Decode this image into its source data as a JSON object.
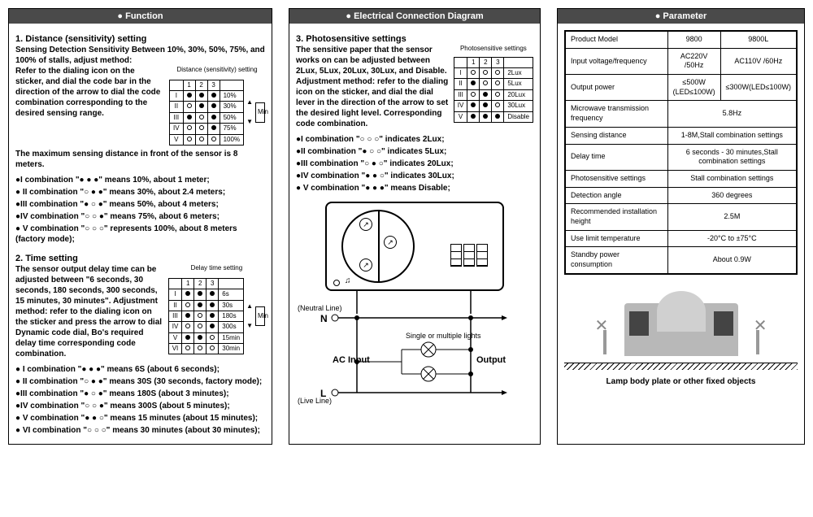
{
  "panel1": {
    "header": "● Function",
    "s1_title": "1. Distance (sensitivity) setting",
    "s1_intro": "Sensing Detection Sensitivity Between 10%, 30%, 50%, 75%, and 100% of stalls, adjust method:",
    "s1_text": "Refer to the dialing icon on the sticker, and dial the code bar in the direction of the arrow to dial the code combination corresponding to the desired sensing range.",
    "s1_tail": "The maximum sensing distance in front of the sensor is 8 meters.",
    "dist_caption": "Distance (sensitivity) setting",
    "dist_rows": [
      {
        "n": "I",
        "d": "●●●",
        "v": "10%"
      },
      {
        "n": "II",
        "d": "○●●",
        "v": "30%"
      },
      {
        "n": "III",
        "d": "●○●",
        "v": "50%"
      },
      {
        "n": "IV",
        "d": "○○●",
        "v": "75%"
      },
      {
        "n": "V",
        "d": "○○○",
        "v": "100%"
      }
    ],
    "s1_bullets": [
      "●I combination \"● ● ●\" means 10%, about 1 meter;",
      "● II combination \"○ ● ●\" means 30%, about 2.4 meters;",
      "●III combination \"● ○ ●\" means 50%, about 4 meters;",
      "●IV combination \"○ ○ ●\" means 75%, about 6 meters;",
      "● V combination \"○ ○ ○\" represents 100%, about 8 meters (factory mode);"
    ],
    "s2_title": "2. Time setting",
    "s2_text": "The sensor output delay time can be adjusted between \"6 seconds, 30 seconds, 180 seconds, 300 seconds, 15 minutes, 30 minutes\". Adjustment method: refer to the dialing icon on the sticker and press the arrow to dial Dynamic code dial, Bo's required delay time corresponding code combination.",
    "delay_caption": "Delay time setting",
    "delay_rows": [
      {
        "n": "I",
        "d": "●●●",
        "v": "6s"
      },
      {
        "n": "II",
        "d": "○●●",
        "v": "30s"
      },
      {
        "n": "III",
        "d": "●○●",
        "v": "180s"
      },
      {
        "n": "IV",
        "d": "○○●",
        "v": "300s"
      },
      {
        "n": "V",
        "d": "●●○",
        "v": "15min"
      },
      {
        "n": "VI",
        "d": "○○○",
        "v": "30min"
      }
    ],
    "s2_bullets": [
      "● I combination \"● ● ●\" means 6S (about 6 seconds);",
      "● II combination \"○ ● ●\" means 30S (30 seconds, factory mode);",
      "●III combination \"● ○ ●\" means 180S (about 3 minutes);",
      "●IV combination \"○ ○ ●\" means 300S (about 5 minutes);",
      "● V combination \"● ● ○\" means 15 minutes (about 15 minutes);",
      "● VI combination \"○ ○ ○\" means 30 minutes (about 30 minutes);"
    ]
  },
  "panel2": {
    "header": "● Electrical Connection Diagram",
    "s3_title": "3. Photosensitive settings",
    "s3_text": "The sensitive paper that the sensor works on can be adjusted between 2Lux, 5Lux, 20Lux, 30Lux, and Disable. Adjustment method: refer to the dialing icon on the sticker, and dial the dial lever in the direction of the arrow to set the desired light level. Corresponding code combination.",
    "photo_caption": "Photosensitive settings",
    "photo_rows": [
      {
        "n": "I",
        "d": "○○○",
        "v": "2Lux"
      },
      {
        "n": "II",
        "d": "●○○",
        "v": "5Lux"
      },
      {
        "n": "III",
        "d": "○●○",
        "v": "20Lux"
      },
      {
        "n": "IV",
        "d": "●●○",
        "v": "30Lux"
      },
      {
        "n": "V",
        "d": "●●●",
        "v": "Disable"
      }
    ],
    "s3_bullets": [
      "●I combination \"○ ○ ○\" indicates 2Lux;",
      "●II combination \"● ○ ○\" indicates 5Lux;",
      "●III combination \"○ ● ○\" indicates 20Lux;",
      "●IV combination \"● ● ○\" indicates 30Lux;",
      "● V combination \"● ● ●\" means Disable;"
    ],
    "neutral": "(Neutral Line)",
    "live": "(Live Line)",
    "n_label": "N",
    "l_label": "L",
    "acinput": "AC Input",
    "output": "Output",
    "lights": "Single or multiple lights"
  },
  "panel3": {
    "header": "● Parameter",
    "rows": [
      {
        "label": "Product Model",
        "v1": "9800",
        "v2": "9800L"
      },
      {
        "label": "Input voltage/frequency",
        "v1": "AC220V /50Hz",
        "v2": "AC110V /60Hz"
      },
      {
        "label": "Output power",
        "v1": "≤500W (LED≤100W)",
        "v2": "≤300W(LED≤100W)"
      },
      {
        "label": "Microwave transmission frequency",
        "span": "5.8Hz"
      },
      {
        "label": "Sensing distance",
        "span": "1-8M,Stall combination settings"
      },
      {
        "label": "Delay time",
        "span": "6 seconds - 30 minutes,Stall combination settings"
      },
      {
        "label": "Photosensitive settings",
        "span": "Stall combination settings"
      },
      {
        "label": "Detection angle",
        "span": "360 degrees"
      },
      {
        "label": "Recommended installation height",
        "span": "2.5M"
      },
      {
        "label": "Use limit temperature",
        "span": "-20°C to ±75°C"
      },
      {
        "label": "Standby power consumption",
        "span": "About 0.9W"
      }
    ],
    "caption": "Lamp body plate or other fixed objects"
  }
}
